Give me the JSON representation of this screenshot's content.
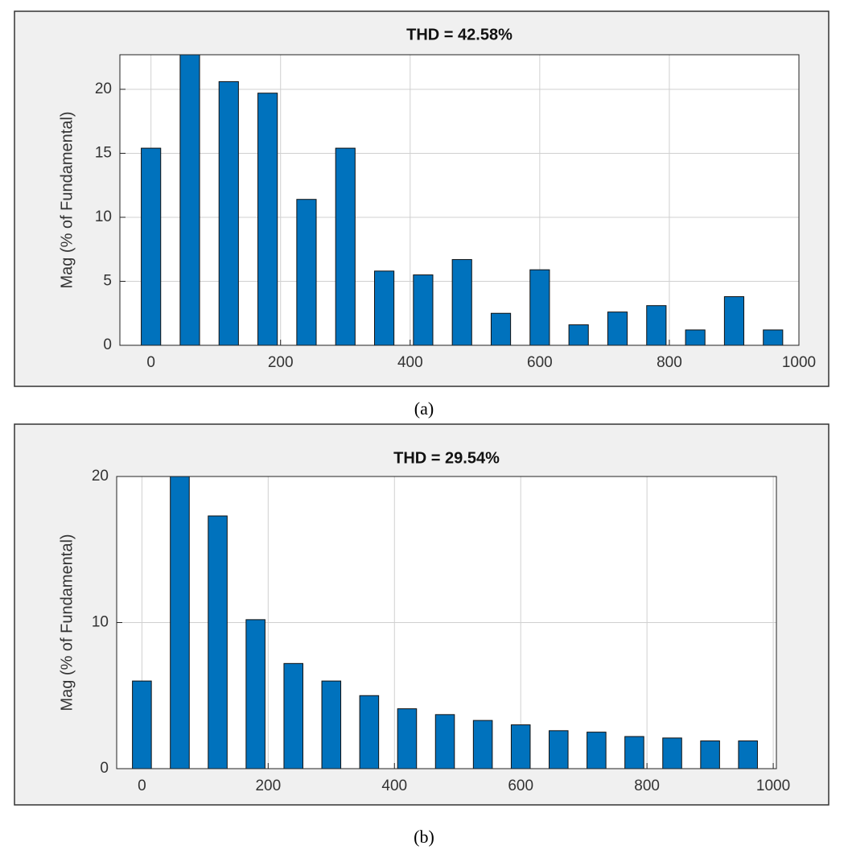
{
  "chart_data": [
    {
      "type": "bar",
      "title": "THD = 42.58%",
      "y_label": "Mag (% of Fundamental)",
      "caption": "(a)",
      "x": [
        0,
        60,
        120,
        180,
        240,
        300,
        360,
        420,
        480,
        540,
        600,
        660,
        720,
        780,
        840,
        900,
        960
      ],
      "values": [
        15.4,
        22.7,
        20.6,
        19.7,
        11.4,
        15.4,
        5.8,
        5.5,
        6.7,
        2.5,
        5.9,
        1.6,
        2.6,
        3.1,
        1.2,
        3.8,
        1.2
      ],
      "color": "#0072bd",
      "xlim": [
        -48,
        1000
      ],
      "ylim": [
        0,
        22.7
      ],
      "xticks": [
        0,
        200,
        400,
        600,
        800,
        1000
      ],
      "yticks": [
        0,
        5,
        10,
        15,
        20
      ],
      "grid": true
    },
    {
      "type": "bar",
      "title": "THD = 29.54%",
      "y_label": "Mag (% of Fundamental)",
      "caption": "(b)",
      "x": [
        0,
        60,
        120,
        180,
        240,
        300,
        360,
        420,
        480,
        540,
        600,
        660,
        720,
        780,
        840,
        900,
        960
      ],
      "values": [
        6.0,
        20,
        17.3,
        10.2,
        7.2,
        6.0,
        5.0,
        4.1,
        3.7,
        3.3,
        3.0,
        2.6,
        2.5,
        2.2,
        2.1,
        1.9,
        1.9
      ],
      "color": "#0072bd",
      "xlim": [
        -40,
        1005
      ],
      "ylim": [
        0,
        20
      ],
      "xticks": [
        0,
        200,
        400,
        600,
        800,
        1000
      ],
      "yticks": [
        0,
        10,
        20
      ],
      "grid": true
    }
  ]
}
